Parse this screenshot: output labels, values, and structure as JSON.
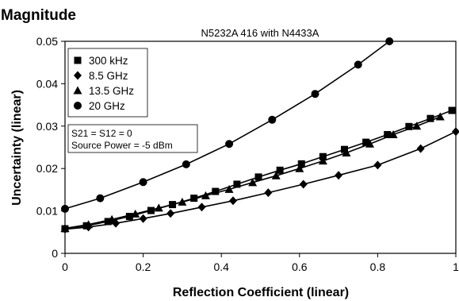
{
  "header": {
    "title": "Magnitude"
  },
  "note": {
    "lines": [
      "S21 = S12 = 0",
      "Source Power = -5 dBm"
    ]
  },
  "chart_data": {
    "type": "line",
    "title": "N5232A 416 with N4433A",
    "xlabel": "Reflection Coefficient (linear)",
    "ylabel": "Uncertainty (linear)",
    "xlim": [
      0,
      1
    ],
    "ylim": [
      0,
      0.05
    ],
    "x_ticks": [
      "0",
      "0.2",
      "0.4",
      "0.6",
      "0.8",
      "1"
    ],
    "y_ticks": [
      "0",
      "0.01",
      "0.02",
      "0.03",
      "0.04",
      "0.05"
    ],
    "grid": false,
    "legend": "top-left",
    "series": [
      {
        "name": "300 kHz",
        "marker": "square",
        "x": [
          0,
          0.055,
          0.11,
          0.165,
          0.22,
          0.275,
          0.33,
          0.385,
          0.44,
          0.495,
          0.55,
          0.605,
          0.66,
          0.715,
          0.77,
          0.825,
          0.88,
          0.935,
          0.99
        ],
        "y": [
          0.0058,
          0.0065,
          0.0075,
          0.0087,
          0.0101,
          0.0115,
          0.013,
          0.0146,
          0.0163,
          0.018,
          0.0196,
          0.0211,
          0.0228,
          0.0245,
          0.0262,
          0.028,
          0.0299,
          0.0318,
          0.0337
        ]
      },
      {
        "name": "8.5 GHz",
        "marker": "diamond",
        "x": [
          0,
          0.06,
          0.13,
          0.2,
          0.27,
          0.35,
          0.43,
          0.52,
          0.61,
          0.7,
          0.8,
          0.91,
          1.0
        ],
        "y": [
          0.0057,
          0.0062,
          0.0071,
          0.0082,
          0.0094,
          0.0109,
          0.0124,
          0.0143,
          0.0163,
          0.0184,
          0.0208,
          0.0247,
          0.0287
        ]
      },
      {
        "name": "13.5 GHz",
        "marker": "triangle",
        "x": [
          0,
          0.06,
          0.12,
          0.18,
          0.24,
          0.3,
          0.36,
          0.42,
          0.48,
          0.54,
          0.6,
          0.66,
          0.72,
          0.78,
          0.84,
          0.9,
          0.96
        ],
        "y": [
          0.0059,
          0.0068,
          0.008,
          0.0093,
          0.0107,
          0.0121,
          0.0136,
          0.0151,
          0.0167,
          0.0183,
          0.02,
          0.0218,
          0.0237,
          0.0258,
          0.028,
          0.03,
          0.0322
        ]
      },
      {
        "name": "20 GHz",
        "marker": "circle",
        "x": [
          0,
          0.09,
          0.2,
          0.31,
          0.42,
          0.53,
          0.64,
          0.75,
          0.83
        ],
        "y": [
          0.0105,
          0.013,
          0.0168,
          0.021,
          0.0258,
          0.0315,
          0.0376,
          0.0445,
          0.05
        ]
      }
    ]
  }
}
